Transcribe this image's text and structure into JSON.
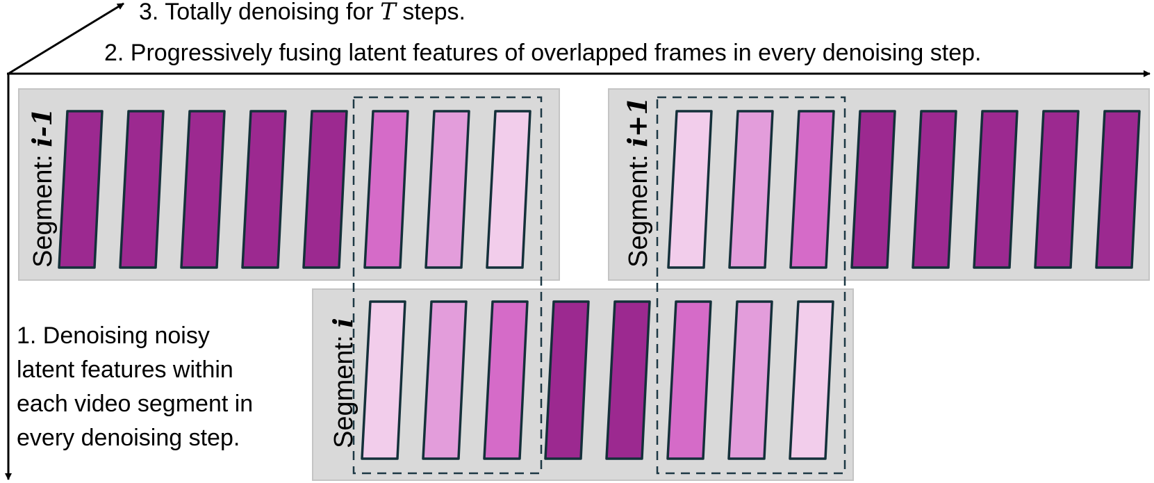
{
  "labels": {
    "axis_time": {
      "prefix": "3. Totally denoising for ",
      "var": "T",
      "suffix": " steps."
    },
    "axis_fuse": "2. Progressively fusing latent features of overlapped frames in every denoising step.",
    "axis_seg": [
      "1. Denoising noisy",
      "latent features within",
      "each video segment in",
      "every denoising step."
    ]
  },
  "segments": [
    {
      "prefix": "Segment: ",
      "index": "i-1",
      "frames": [
        "dark",
        "dark",
        "dark",
        "dark",
        "dark",
        "mid",
        "light",
        "pale"
      ]
    },
    {
      "prefix": "Segment: ",
      "index": "i+1",
      "frames": [
        "pale",
        "light",
        "mid",
        "dark",
        "dark",
        "dark",
        "dark",
        "dark"
      ]
    },
    {
      "prefix": "Segment: ",
      "index": "i",
      "frames": [
        "pale",
        "light",
        "mid",
        "dark",
        "dark",
        "mid",
        "light",
        "pale"
      ]
    }
  ],
  "colors": {
    "dark": "#9c2990",
    "mid": "#d56bc8",
    "light": "#e39ddb",
    "pale": "#f2cdeb",
    "frame_stroke": "#14303a",
    "panel": "#d9d9d9",
    "panel_stroke": "#c4c4c4",
    "dashed": "#1c3844",
    "axis": "#000000"
  }
}
